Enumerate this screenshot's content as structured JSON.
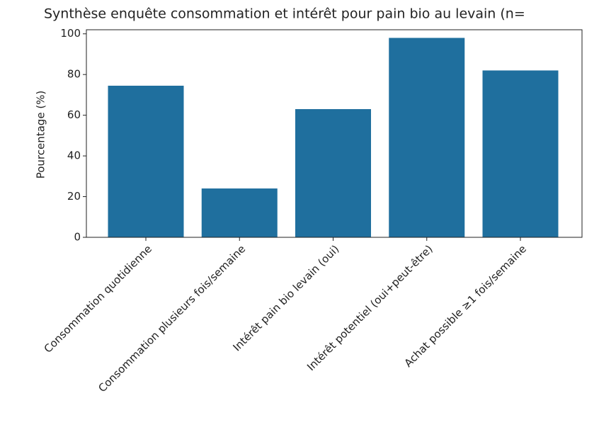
{
  "chart_data": {
    "type": "bar",
    "title": "Synthèse enquête consommation et intérêt pour pain bio au levain (n=",
    "ylabel": "Pourcentage (%)",
    "categories": [
      "Consommation quotidienne",
      "Consommation plusieurs fois/semaine",
      "Intérêt pain bio levain (oui)",
      "Intérêt potentiel (oui+peut-être)",
      "Achat possible ≥1 fois/semaine"
    ],
    "values": [
      74.5,
      24,
      63,
      98,
      82
    ],
    "color": "#1f6f9e",
    "ylim": [
      0,
      102
    ],
    "yticks": [
      0,
      20,
      40,
      60,
      80,
      100
    ],
    "grid": false
  }
}
